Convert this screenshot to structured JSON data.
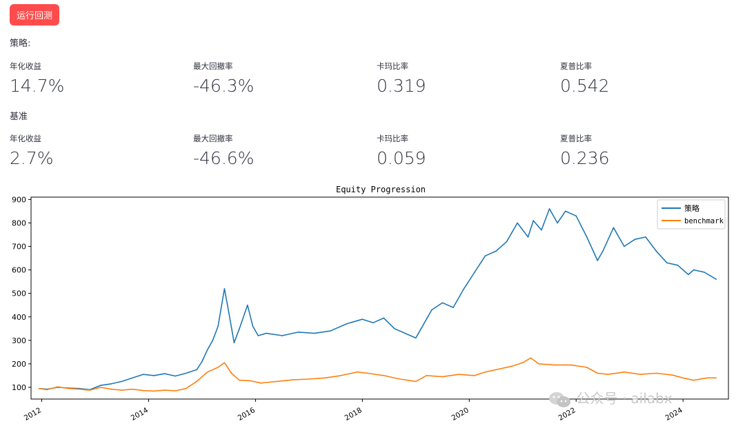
{
  "run_button": "运行回测",
  "strategy": {
    "title": "策略:",
    "metrics": [
      {
        "label": "年化收益",
        "value": "14.7%"
      },
      {
        "label": "最大回撤率",
        "value": "-46.3%"
      },
      {
        "label": "卡玛比率",
        "value": "0.319"
      },
      {
        "label": "夏普比率",
        "value": "0.542"
      }
    ]
  },
  "benchmark": {
    "title": "基准",
    "metrics": [
      {
        "label": "年化收益",
        "value": "2.7%"
      },
      {
        "label": "最大回撤率",
        "value": "-46.6%"
      },
      {
        "label": "卡玛比率",
        "value": "0.059"
      },
      {
        "label": "夏普比率",
        "value": "0.236"
      }
    ]
  },
  "watermark": "公众号 · ailabx",
  "chart_data": {
    "type": "line",
    "title": "Equity Progression",
    "xlabel": "",
    "ylabel": "",
    "xlim": [
      2011.8,
      2024.85
    ],
    "ylim": [
      50,
      910
    ],
    "x_ticks": [
      2012,
      2014,
      2016,
      2018,
      2020,
      2022,
      2024
    ],
    "y_ticks": [
      100,
      200,
      300,
      400,
      500,
      600,
      700,
      800,
      900
    ],
    "legend_position": "top-right",
    "series": [
      {
        "name": "策略",
        "color": "#1f77b4",
        "x": [
          2011.95,
          2012.1,
          2012.3,
          2012.5,
          2012.7,
          2012.9,
          2013.1,
          2013.3,
          2013.5,
          2013.7,
          2013.9,
          2014.1,
          2014.3,
          2014.5,
          2014.7,
          2014.9,
          2015.0,
          2015.1,
          2015.2,
          2015.3,
          2015.42,
          2015.5,
          2015.6,
          2015.7,
          2015.85,
          2015.95,
          2016.05,
          2016.2,
          2016.5,
          2016.8,
          2017.1,
          2017.4,
          2017.7,
          2018.0,
          2018.2,
          2018.4,
          2018.6,
          2018.8,
          2019.0,
          2019.1,
          2019.3,
          2019.5,
          2019.7,
          2019.9,
          2020.1,
          2020.3,
          2020.5,
          2020.7,
          2020.9,
          2021.1,
          2021.2,
          2021.35,
          2021.5,
          2021.65,
          2021.8,
          2022.0,
          2022.2,
          2022.4,
          2022.5,
          2022.7,
          2022.9,
          2023.1,
          2023.3,
          2023.5,
          2023.7,
          2023.9,
          2024.1,
          2024.2,
          2024.4,
          2024.62
        ],
        "values": [
          95,
          92,
          100,
          97,
          95,
          90,
          108,
          115,
          125,
          140,
          155,
          150,
          158,
          148,
          160,
          175,
          210,
          260,
          300,
          360,
          520,
          420,
          290,
          350,
          450,
          360,
          320,
          330,
          320,
          335,
          330,
          340,
          370,
          390,
          375,
          395,
          350,
          330,
          310,
          350,
          430,
          460,
          440,
          520,
          590,
          660,
          680,
          720,
          800,
          740,
          810,
          770,
          860,
          800,
          850,
          830,
          740,
          640,
          680,
          780,
          700,
          730,
          740,
          680,
          630,
          620,
          580,
          600,
          590,
          560
        ]
      },
      {
        "name": "benchmark",
        "color": "#ff7f0e",
        "x": [
          2011.95,
          2012.1,
          2012.3,
          2012.5,
          2012.7,
          2012.9,
          2013.1,
          2013.3,
          2013.5,
          2013.7,
          2013.9,
          2014.1,
          2014.3,
          2014.5,
          2014.7,
          2014.9,
          2015.1,
          2015.3,
          2015.42,
          2015.55,
          2015.7,
          2015.9,
          2016.1,
          2016.4,
          2016.7,
          2017.0,
          2017.3,
          2017.6,
          2017.9,
          2018.1,
          2018.4,
          2018.7,
          2019.0,
          2019.2,
          2019.5,
          2019.8,
          2020.1,
          2020.3,
          2020.5,
          2020.8,
          2021.0,
          2021.15,
          2021.3,
          2021.6,
          2021.9,
          2022.2,
          2022.4,
          2022.6,
          2022.9,
          2023.2,
          2023.5,
          2023.8,
          2024.0,
          2024.2,
          2024.45,
          2024.62
        ],
        "values": [
          95,
          90,
          102,
          95,
          92,
          88,
          100,
          92,
          88,
          92,
          86,
          84,
          88,
          85,
          95,
          125,
          165,
          185,
          205,
          160,
          130,
          128,
          118,
          125,
          132,
          135,
          140,
          150,
          165,
          160,
          150,
          135,
          125,
          150,
          145,
          155,
          150,
          165,
          175,
          190,
          205,
          225,
          200,
          195,
          195,
          185,
          160,
          155,
          165,
          155,
          160,
          152,
          140,
          130,
          140,
          140
        ]
      }
    ]
  }
}
